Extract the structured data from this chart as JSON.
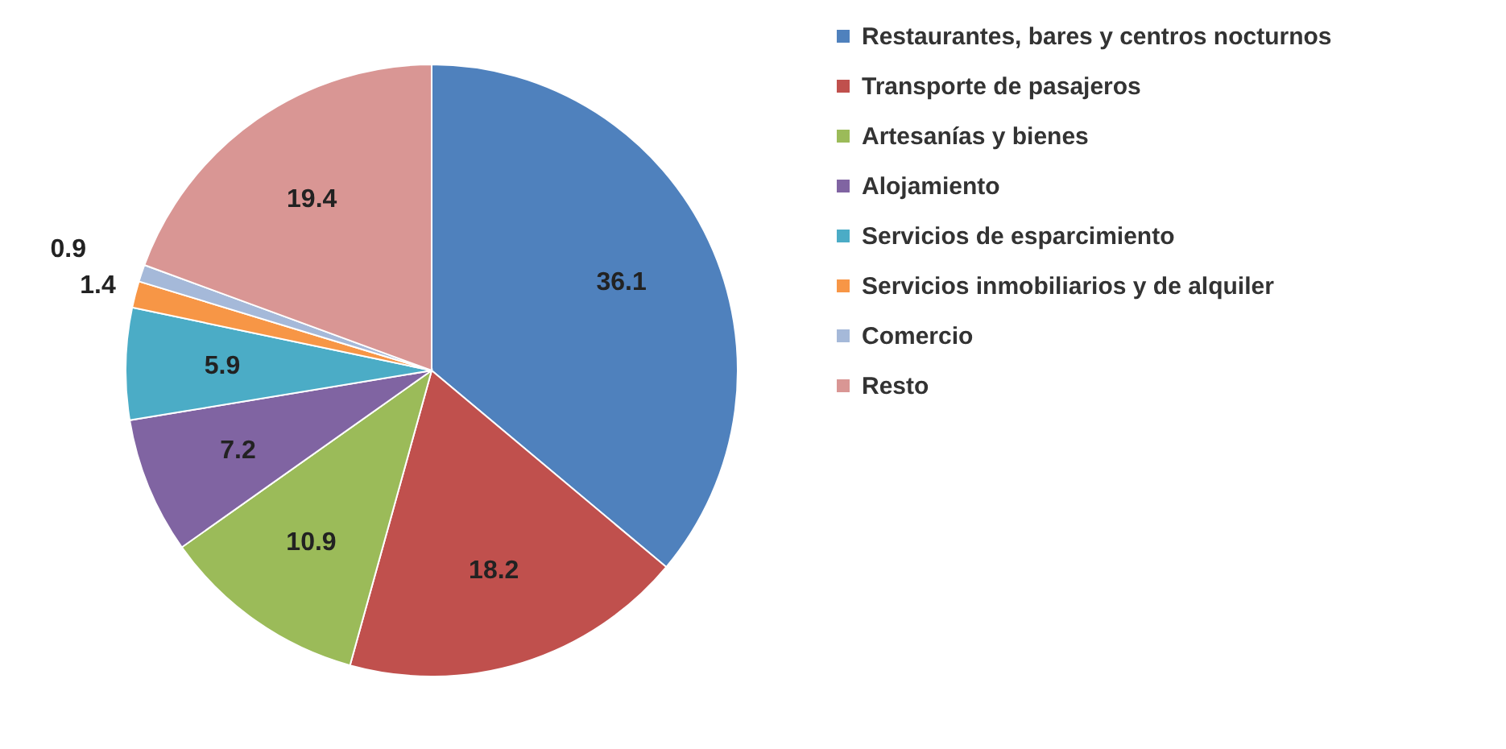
{
  "chart_data": {
    "type": "pie",
    "categories": [
      "Restaurantes, bares y centros nocturnos",
      "Transporte de pasajeros",
      "Artesanías y bienes",
      "Alojamiento",
      "Servicios de esparcimiento",
      "Servicios inmobiliarios y de alquiler",
      "Comercio",
      "Resto"
    ],
    "values": [
      36.1,
      18.2,
      10.9,
      7.2,
      5.9,
      1.4,
      0.9,
      19.4
    ],
    "colors": [
      "#4f81bd",
      "#c0504d",
      "#9bbb59",
      "#8064a2",
      "#4bacc6",
      "#f79646",
      "#a5b9d9",
      "#d99694"
    ],
    "data_labels": true,
    "legend": "right"
  }
}
